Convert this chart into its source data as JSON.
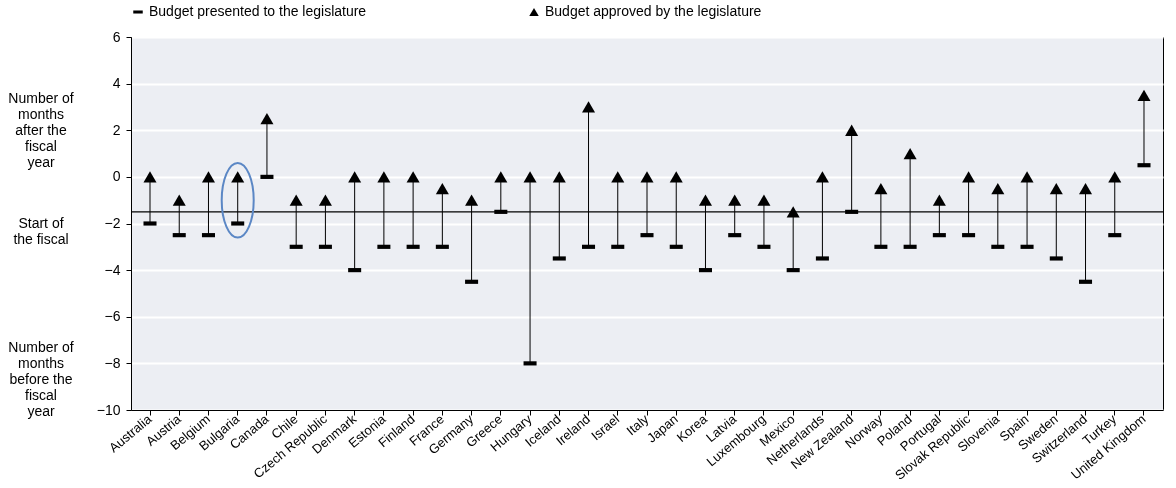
{
  "chart_data": {
    "type": "scatter",
    "categories": [
      "Australia",
      "Austria",
      "Belgium",
      "Bulgaria",
      "Canada",
      "Chile",
      "Czech Republic",
      "Denmark",
      "Estonia",
      "Finland",
      "France",
      "Germany",
      "Greece",
      "Hungary",
      "Iceland",
      "Ireland",
      "Israel",
      "Italy",
      "Japan",
      "Korea",
      "Latvia",
      "Luxembourg",
      "Mexico",
      "Netherlands",
      "New Zealand",
      "Norway",
      "Poland",
      "Portugal",
      "Slovak Republic",
      "Slovenia",
      "Spain",
      "Sweden",
      "Switzerland",
      "Turkey",
      "United Kingdom"
    ],
    "series": [
      {
        "name": "Budget presented to the legislature",
        "color": "#000000",
        "values": [
          -2,
          -2.5,
          -2.5,
          -2,
          0,
          -3,
          -3,
          -4,
          -3,
          -3,
          -3,
          -4.5,
          -1.5,
          -8,
          -3.5,
          -3,
          -3,
          -2.5,
          -3,
          -4,
          -2.5,
          -3,
          -4,
          -3.5,
          -1.5,
          -3,
          -3,
          -2.5,
          -2.5,
          -3,
          -3,
          -3.5,
          -4.5,
          -2.5,
          0.5
        ]
      },
      {
        "name": "Budget approved by the legislature",
        "color": "#000000",
        "marker": "triangle",
        "values": [
          0,
          -1,
          0,
          0,
          2.5,
          -1,
          -1,
          0,
          0,
          0,
          -0.5,
          -1,
          0,
          0,
          0,
          3,
          0,
          0,
          0,
          -1,
          -1,
          -1,
          -1.5,
          0,
          2,
          -0.5,
          1,
          -1,
          0,
          -0.5,
          0,
          -0.5,
          -0.5,
          0,
          3.5
        ]
      }
    ],
    "ylim": [
      -10,
      6
    ],
    "yticks": [
      -10,
      -8,
      -6,
      -4,
      -2,
      0,
      2,
      4,
      6
    ],
    "grid": "y",
    "legend": "top",
    "ref_lines": [
      {
        "axis": "y",
        "value": -1.5,
        "color": "#000000"
      }
    ],
    "annotations": [
      "Number of months after the fiscal year",
      "Start of the fiscal",
      "Number of months before the fiscal year"
    ]
  }
}
